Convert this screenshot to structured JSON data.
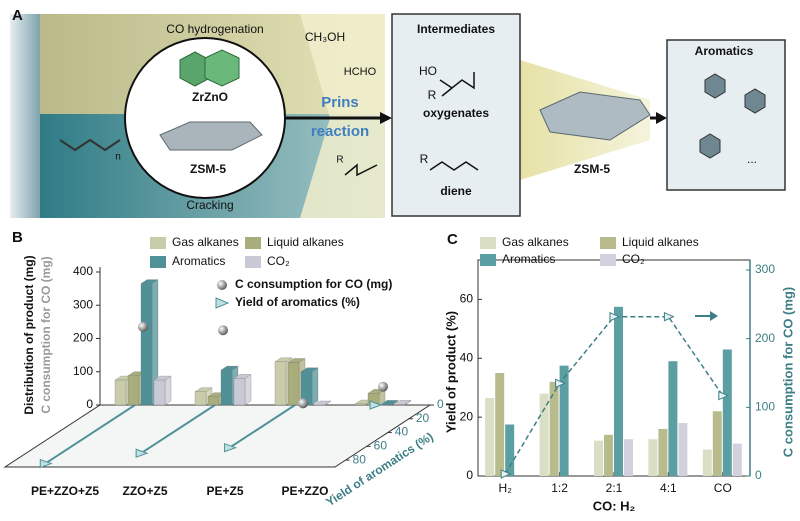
{
  "diagram": {
    "panel_label": "A",
    "co_hydrogenation": "CO hydrogenation",
    "catalyst_1": "ZrZnO",
    "catalyst_2": "ZSM-5",
    "cracking": "Cracking",
    "methanol": "CH₃OH",
    "formaldehyde": "HCHO",
    "prins_1": "Prins",
    "prins_2": "reaction",
    "intermediates_title": "Intermediates",
    "ho": "HO",
    "r_oxygenate": "R",
    "oxygenates": "oxygenates",
    "r_diene": "R",
    "diene": "diene",
    "r_olefin": "R",
    "polymer_n": "n",
    "zeolite": "ZSM-5",
    "aromatics_title": "Aromatics",
    "ellipsis": "..."
  },
  "chart_data": [
    {
      "type": "bar3d",
      "panel_label": "B",
      "ylabel": "Distribution of product (mg)",
      "ylabel2": "C consumption for CO (mg)",
      "zlabel": "Yield of aromatics (%)",
      "categories": [
        "PE+ZZO+Z5",
        "ZZO+Z5",
        "PE+Z5",
        "PE+ZZO"
      ],
      "series": [
        {
          "name": "Gas alkanes",
          "color": "#c9ccaa",
          "values": [
            75,
            40,
            130,
            3
          ]
        },
        {
          "name": "Liquid alkanes",
          "color": "#a9ad7c",
          "values": [
            88,
            25,
            128,
            35
          ]
        },
        {
          "name": "Aromatics",
          "color": "#4f9197",
          "values": [
            365,
            105,
            100,
            2
          ]
        },
        {
          "name": "CO₂",
          "color": "#c9c9d6",
          "values": [
            75,
            80,
            0,
            2
          ]
        }
      ],
      "markers": [
        {
          "name": "C consumption for CO (mg)",
          "color": "#8a8a8a",
          "values": [
            235,
            225,
            5,
            55
          ]
        },
        {
          "name": "Yield of aromatics (%)",
          "color": "#4f9197",
          "values": [
            85,
            70,
            62,
            0
          ]
        }
      ],
      "ylim": [
        0,
        400
      ],
      "yticks": [
        0,
        100,
        200,
        300,
        400
      ],
      "zlim": [
        0,
        90
      ],
      "zticks": [
        0,
        20,
        40,
        60,
        80
      ]
    },
    {
      "type": "bar",
      "panel_label": "C",
      "xlabel": "CO: H₂",
      "ylabel": "Yield of product (%)",
      "y2label": "C consumption for CO (mg)",
      "categories": [
        "H₂",
        "1:2",
        "2:1",
        "4:1",
        "CO"
      ],
      "series": [
        {
          "name": "Gas alkanes",
          "color": "#d9dec4",
          "values": [
            26.5,
            28,
            12,
            12.5,
            9
          ]
        },
        {
          "name": "Liquid alkanes",
          "color": "#b8bc8c",
          "values": [
            35,
            32,
            14,
            16,
            22
          ]
        },
        {
          "name": "Aromatics",
          "color": "#5b9fa2",
          "values": [
            17.5,
            37.5,
            57.5,
            39,
            43
          ]
        },
        {
          "name": "CO₂",
          "color": "#d2d2de",
          "values": [
            null,
            null,
            12.5,
            18,
            11
          ]
        },
        {
          "type": "line",
          "axis": "y2",
          "color": "#3d7f86",
          "values": [
            3,
            135,
            232,
            232,
            117
          ]
        }
      ],
      "ylim": [
        0,
        70
      ],
      "yticks": [
        0,
        20,
        40,
        60
      ],
      "y2lim": [
        0,
        300
      ],
      "y2ticks": [
        0,
        100,
        200,
        300
      ]
    }
  ]
}
